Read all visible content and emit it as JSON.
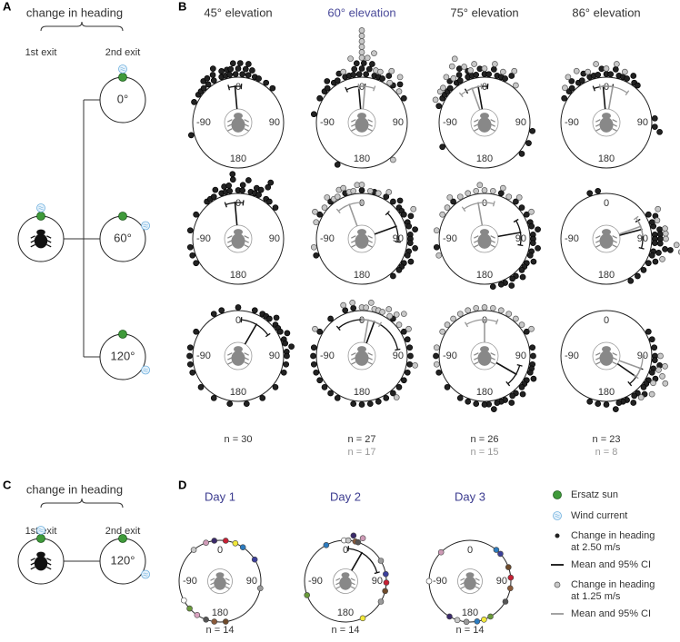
{
  "panels": {
    "a": "A",
    "b": "B",
    "c": "C",
    "d": "D"
  },
  "panel_a": {
    "title": "change in heading",
    "exit1": "1st exit",
    "exit2": "2nd exit",
    "conditions": [
      {
        "label": "0°",
        "wind": 0
      },
      {
        "label": "60°",
        "wind": 60
      },
      {
        "label": "120°",
        "wind": 120
      }
    ]
  },
  "axis_labels": {
    "top": "0",
    "left": "-90",
    "right": "90",
    "bottom": "180"
  },
  "panel_b": {
    "columns": [
      "45° elevation",
      "60° elevation",
      "75° elevation",
      "86° elevation"
    ],
    "n": [
      {
        "dark": "n = 30"
      },
      {
        "dark": "n = 27",
        "light": "n = 17"
      },
      {
        "dark": "n = 26",
        "light": "n = 15"
      },
      {
        "dark": "n = 23",
        "light": "n = 8"
      }
    ],
    "rows": [
      [
        {
          "dark": [
            -105,
            -65,
            -55,
            -50,
            -45,
            -40,
            -38,
            -35,
            -30,
            -28,
            -25,
            -20,
            -18,
            -15,
            -12,
            -10,
            -8,
            -5,
            -3,
            0,
            2,
            5,
            8,
            10,
            12,
            15,
            20,
            25,
            35,
            45
          ],
          "light": [],
          "dark_mean": -5,
          "dark_ci": [
            -15,
            5
          ]
        },
        {
          "dark": [
            -80,
            -60,
            -50,
            -45,
            -40,
            -35,
            -30,
            -25,
            -20,
            -15,
            -10,
            -8,
            -5,
            -3,
            0,
            2,
            5,
            8,
            10,
            15,
            20,
            25,
            30,
            40,
            45,
            60,
            -150
          ],
          "light": [
            -20,
            -10,
            0,
            0,
            0,
            0,
            0,
            0,
            5,
            10,
            15,
            20,
            30,
            35,
            40,
            50,
            140
          ],
          "dark_mean": -5,
          "dark_ci": [
            -25,
            5
          ],
          "light_mean": 5,
          "light_ci": [
            -5,
            20
          ]
        },
        {
          "dark": [
            -70,
            -60,
            -55,
            -50,
            -45,
            -40,
            -35,
            -30,
            -28,
            -25,
            -20,
            -18,
            -15,
            -10,
            -5,
            0,
            5,
            10,
            15,
            20,
            25,
            30,
            -120,
            100,
            115,
            130
          ],
          "light": [
            -65,
            -55,
            -50,
            -40,
            -35,
            -30,
            -25,
            -20,
            -15,
            -10,
            0,
            10,
            20,
            30,
            40
          ],
          "dark_mean": -10,
          "dark_ci": [
            -30,
            5
          ],
          "light_mean": -20,
          "light_ci": [
            -40,
            -5
          ]
        },
        {
          "dark": [
            -60,
            -50,
            -45,
            -40,
            -35,
            -30,
            -25,
            -20,
            -15,
            -10,
            -5,
            0,
            5,
            10,
            15,
            20,
            25,
            30,
            35,
            40,
            85,
            95,
            100
          ],
          "light": [
            -50,
            -40,
            -30,
            -20,
            -10,
            0,
            10,
            20
          ],
          "dark_mean": -5,
          "dark_ci": [
            -20,
            10
          ],
          "light_mean": 10,
          "light_ci": [
            -10,
            35
          ]
        }
      ],
      [
        {
          "dark": [
            -110,
            -100,
            -80,
            -40,
            -35,
            -30,
            -25,
            -20,
            -15,
            -15,
            -10,
            -10,
            -5,
            -5,
            0,
            5,
            5,
            10,
            15,
            20,
            20,
            25,
            25,
            30,
            35,
            40,
            50,
            -120,
            -60,
            30
          ],
          "light": [],
          "dark_mean": -5,
          "dark_ci": [
            -20,
            8
          ]
        },
        {
          "dark": [
            -60,
            -40,
            -20,
            0,
            15,
            30,
            40,
            45,
            50,
            55,
            60,
            65,
            70,
            75,
            80,
            85,
            90,
            95,
            100,
            105,
            110,
            115,
            120,
            125,
            130,
            140,
            -110
          ],
          "light": [
            -70,
            -60,
            -50,
            -40,
            -35,
            -30,
            -25,
            -20,
            -15,
            -10,
            -5,
            0,
            10,
            20,
            30,
            -100,
            60
          ],
          "dark_mean": 70,
          "dark_ci": [
            45,
            95
          ],
          "light_mean": -20,
          "light_ci": [
            -40,
            0
          ]
        },
        {
          "dark": [
            -40,
            20,
            40,
            60,
            70,
            75,
            80,
            85,
            90,
            95,
            100,
            105,
            110,
            115,
            120,
            125,
            130,
            135,
            140,
            145,
            150,
            155,
            160,
            50,
            -100,
            170
          ],
          "light": [
            -80,
            -60,
            -50,
            -40,
            -30,
            -20,
            -10,
            0,
            10,
            20,
            30,
            40,
            -110,
            60,
            -5
          ],
          "dark_mean": 80,
          "dark_ci": [
            60,
            100
          ],
          "light_mean": -10,
          "light_ci": [
            -35,
            15
          ]
        },
        {
          "dark": [
            75,
            80,
            85,
            85,
            90,
            90,
            95,
            95,
            100,
            100,
            105,
            105,
            110,
            115,
            120,
            -20,
            -10,
            60,
            65,
            70,
            130,
            140,
            150
          ],
          "light": [
            60,
            70,
            80,
            85,
            90,
            95,
            100,
            110
          ],
          "dark_mean": 75,
          "dark_ci": [
            60,
            105
          ],
          "light_mean": 70,
          "light_ci": [
            55,
            85
          ]
        }
      ],
      [
        {
          "dark": [
            -110,
            -100,
            -90,
            -80,
            -60,
            -30,
            -20,
            0,
            20,
            30,
            35,
            40,
            45,
            50,
            55,
            60,
            65,
            70,
            75,
            80,
            85,
            90,
            100,
            110,
            130,
            150,
            170,
            -150,
            -170,
            -130
          ],
          "light": [],
          "dark_mean": 30,
          "dark_ci": [
            5,
            55
          ]
        },
        {
          "dark": [
            -170,
            -150,
            -130,
            -120,
            -110,
            -100,
            -90,
            -80,
            -60,
            -40,
            -20,
            60,
            80,
            100,
            110,
            120,
            130,
            140,
            150,
            160,
            170,
            180,
            -140,
            90,
            70,
            40,
            -10
          ],
          "light": [
            0,
            5,
            10,
            15,
            20,
            25,
            30,
            35,
            40,
            45,
            -20,
            -10,
            50,
            60,
            100,
            -60,
            140
          ],
          "dark_mean": 20,
          "dark_ci": [
            -40,
            80
          ],
          "light_mean": 10,
          "light_ci": [
            0,
            30
          ]
        },
        {
          "dark": [
            90,
            100,
            105,
            110,
            115,
            120,
            125,
            130,
            135,
            140,
            145,
            150,
            155,
            160,
            165,
            170,
            175,
            180,
            -170,
            -160,
            -150,
            -130,
            60,
            80,
            -110,
            -90
          ],
          "light": [
            -60,
            -50,
            -40,
            -30,
            -20,
            -10,
            0,
            10,
            20,
            30,
            40,
            50,
            60,
            -80,
            -100
          ],
          "dark_mean": 120,
          "dark_ci": [
            105,
            140
          ],
          "light_mean": 0,
          "light_ci": [
            -30,
            20
          ]
        },
        {
          "dark": [
            80,
            90,
            95,
            100,
            105,
            110,
            115,
            120,
            125,
            130,
            135,
            140,
            145,
            150,
            155,
            160,
            165,
            170,
            180,
            -170,
            -160,
            60,
            70
          ],
          "light": [
            90,
            100,
            105,
            110,
            115,
            120,
            130,
            140
          ],
          "dark_mean": 125,
          "dark_ci": [
            110,
            140
          ],
          "light_mean": 110,
          "light_ci": [
            90,
            125
          ]
        }
      ]
    ]
  },
  "panel_c": {
    "title": "change in heading",
    "exit1": "1st exit",
    "exit2": "2nd exit",
    "condition": "120°"
  },
  "panel_d": {
    "columns": [
      "Day 1",
      "Day 2",
      "Day 3"
    ],
    "n": [
      "n = 14",
      "n = 14",
      "n = 14"
    ],
    "plots": [
      {
        "dots": [
          {
            "angle": -20,
            "color": "#ce9ab6"
          },
          {
            "angle": -8,
            "color": "#3a2a6a"
          },
          {
            "angle": 8,
            "color": "#c62034"
          },
          {
            "angle": 22,
            "color": "#f2e93a"
          },
          {
            "angle": 34,
            "color": "#2c7bbf"
          },
          {
            "angle": 58,
            "color": "#3b3f9a"
          },
          {
            "angle": 100,
            "color": "#9b9b9b"
          },
          {
            "angle": -118,
            "color": "#ffffff"
          },
          {
            "angle": -132,
            "color": "#6a9a3a"
          },
          {
            "angle": -146,
            "color": "#d9a3c0"
          },
          {
            "angle": -172,
            "color": "#8a5a3a"
          },
          {
            "angle": 172,
            "color": "#6e4a2a"
          },
          {
            "angle": -160,
            "color": "#555555"
          },
          {
            "angle": -40,
            "color": "#c8c8c8"
          }
        ]
      },
      {
        "dots": [
          {
            "angle": -2,
            "color": "#ffffff"
          },
          {
            "angle": 4,
            "color": "#c8c8c8"
          },
          {
            "angle": 10,
            "color": "#3a2a6a"
          },
          {
            "angle": 14,
            "color": "#8a5a3a"
          },
          {
            "angle": 18,
            "color": "#555555"
          },
          {
            "angle": 22,
            "color": "#ce9ab6"
          },
          {
            "angle": -28,
            "color": "#2c7bbf"
          },
          {
            "angle": -110,
            "color": "#6a9a3a"
          },
          {
            "angle": 80,
            "color": "#3b3f9a"
          },
          {
            "angle": 92,
            "color": "#c62034"
          },
          {
            "angle": 104,
            "color": "#6e4a2a"
          },
          {
            "angle": 120,
            "color": "#9b9b9b"
          },
          {
            "angle": 60,
            "color": "#9b9b9b"
          },
          {
            "angle": 155,
            "color": "#f2e93a"
          }
        ],
        "mean": 30,
        "ci": [
          5,
          75
        ]
      },
      {
        "dots": [
          {
            "angle": -45,
            "color": "#ce9ab6"
          },
          {
            "angle": -90,
            "color": "#ffffff"
          },
          {
            "angle": 40,
            "color": "#2c7bbf"
          },
          {
            "angle": 48,
            "color": "#3b3f9a"
          },
          {
            "angle": 70,
            "color": "#6e4a2a"
          },
          {
            "angle": 85,
            "color": "#c62034"
          },
          {
            "angle": 100,
            "color": "#8a5a3a"
          },
          {
            "angle": 120,
            "color": "#555555"
          },
          {
            "angle": 150,
            "color": "#6a9a3a"
          },
          {
            "angle": 160,
            "color": "#f2e93a"
          },
          {
            "angle": 170,
            "color": "#2c7bbf"
          },
          {
            "angle": -175,
            "color": "#9b9b9b"
          },
          {
            "angle": -162,
            "color": "#c8c8c8"
          },
          {
            "angle": -150,
            "color": "#3a2a6a"
          }
        ]
      }
    ]
  },
  "legend": [
    {
      "kind": "sun",
      "text": [
        "Ersatz sun"
      ]
    },
    {
      "kind": "wind",
      "text": [
        "Wind current"
      ]
    },
    {
      "kind": "dark",
      "text": [
        "Change in heading",
        "at 2.50 m/s"
      ]
    },
    {
      "kind": "darkline",
      "text": [
        "Mean and 95% CI"
      ]
    },
    {
      "kind": "light",
      "text": [
        "Change in heading",
        "at 1.25 m/s"
      ]
    },
    {
      "kind": "lightline",
      "text": [
        "Mean and 95% CI"
      ]
    }
  ]
}
